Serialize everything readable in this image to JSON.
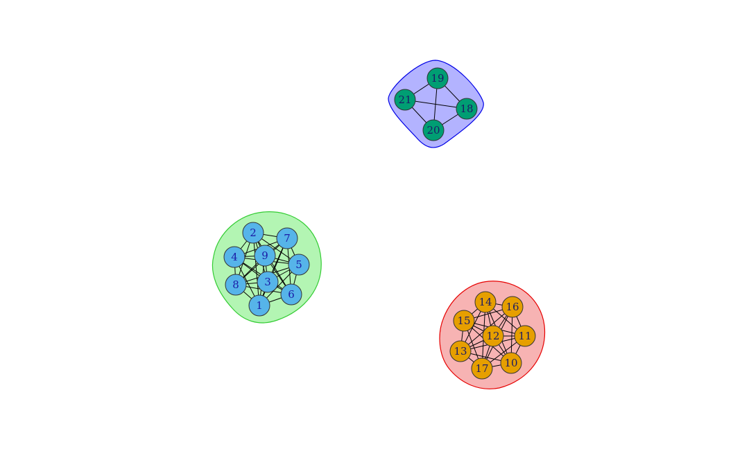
{
  "graph": {
    "nodes": [
      {
        "id": "1",
        "label": "1",
        "community": "green"
      },
      {
        "id": "2",
        "label": "2",
        "community": "green"
      },
      {
        "id": "3",
        "label": "3",
        "community": "green"
      },
      {
        "id": "4",
        "label": "4",
        "community": "green"
      },
      {
        "id": "5",
        "label": "5",
        "community": "green"
      },
      {
        "id": "6",
        "label": "6",
        "community": "green"
      },
      {
        "id": "7",
        "label": "7",
        "community": "green"
      },
      {
        "id": "8",
        "label": "8",
        "community": "green"
      },
      {
        "id": "9",
        "label": "9",
        "community": "green"
      },
      {
        "id": "10",
        "label": "10",
        "community": "red"
      },
      {
        "id": "11",
        "label": "11",
        "community": "red"
      },
      {
        "id": "12",
        "label": "12",
        "community": "red"
      },
      {
        "id": "13",
        "label": "13",
        "community": "red"
      },
      {
        "id": "14",
        "label": "14",
        "community": "red"
      },
      {
        "id": "15",
        "label": "15",
        "community": "red"
      },
      {
        "id": "16",
        "label": "16",
        "community": "red"
      },
      {
        "id": "17",
        "label": "17",
        "community": "red"
      },
      {
        "id": "18",
        "label": "18",
        "community": "blue"
      },
      {
        "id": "19",
        "label": "19",
        "community": "blue"
      },
      {
        "id": "20",
        "label": "20",
        "community": "blue"
      },
      {
        "id": "21",
        "label": "21",
        "community": "blue"
      }
    ],
    "edges": [
      [
        "1",
        "2"
      ],
      [
        "1",
        "3"
      ],
      [
        "1",
        "4"
      ],
      [
        "1",
        "5"
      ],
      [
        "1",
        "6"
      ],
      [
        "1",
        "7"
      ],
      [
        "1",
        "8"
      ],
      [
        "1",
        "9"
      ],
      [
        "2",
        "3"
      ],
      [
        "2",
        "4"
      ],
      [
        "2",
        "5"
      ],
      [
        "2",
        "6"
      ],
      [
        "2",
        "7"
      ],
      [
        "2",
        "8"
      ],
      [
        "2",
        "9"
      ],
      [
        "3",
        "4"
      ],
      [
        "3",
        "5"
      ],
      [
        "3",
        "6"
      ],
      [
        "3",
        "7"
      ],
      [
        "3",
        "8"
      ],
      [
        "3",
        "9"
      ],
      [
        "4",
        "5"
      ],
      [
        "4",
        "6"
      ],
      [
        "4",
        "7"
      ],
      [
        "4",
        "8"
      ],
      [
        "4",
        "9"
      ],
      [
        "5",
        "6"
      ],
      [
        "5",
        "7"
      ],
      [
        "5",
        "8"
      ],
      [
        "5",
        "9"
      ],
      [
        "6",
        "7"
      ],
      [
        "6",
        "8"
      ],
      [
        "6",
        "9"
      ],
      [
        "7",
        "8"
      ],
      [
        "7",
        "9"
      ],
      [
        "8",
        "9"
      ],
      [
        "10",
        "11"
      ],
      [
        "10",
        "12"
      ],
      [
        "10",
        "13"
      ],
      [
        "10",
        "14"
      ],
      [
        "10",
        "15"
      ],
      [
        "10",
        "16"
      ],
      [
        "10",
        "17"
      ],
      [
        "11",
        "12"
      ],
      [
        "11",
        "13"
      ],
      [
        "11",
        "14"
      ],
      [
        "11",
        "15"
      ],
      [
        "11",
        "16"
      ],
      [
        "11",
        "17"
      ],
      [
        "12",
        "13"
      ],
      [
        "12",
        "14"
      ],
      [
        "12",
        "15"
      ],
      [
        "12",
        "16"
      ],
      [
        "12",
        "17"
      ],
      [
        "13",
        "14"
      ],
      [
        "13",
        "15"
      ],
      [
        "13",
        "16"
      ],
      [
        "13",
        "17"
      ],
      [
        "14",
        "15"
      ],
      [
        "14",
        "16"
      ],
      [
        "14",
        "17"
      ],
      [
        "15",
        "16"
      ],
      [
        "15",
        "17"
      ],
      [
        "16",
        "17"
      ],
      [
        "18",
        "19"
      ],
      [
        "18",
        "20"
      ],
      [
        "18",
        "21"
      ],
      [
        "19",
        "20"
      ],
      [
        "19",
        "21"
      ],
      [
        "20",
        "21"
      ]
    ],
    "communities": {
      "green": {
        "node_fill": "#56B4E9",
        "hull_fill": "#b3f5b3",
        "hull_stroke": "#33cc33",
        "label_color": "#1a1aa6"
      },
      "red": {
        "node_fill": "#E69F00",
        "hull_fill": "#f7b3b3",
        "hull_stroke": "#e60000",
        "label_color": "#1a1a66"
      },
      "blue": {
        "node_fill": "#009E73",
        "hull_fill": "#b3b3ff",
        "hull_stroke": "#0000e6",
        "label_color": "#1a1a66"
      }
    },
    "edge_color": "#000000",
    "node_stroke": "#333333"
  }
}
